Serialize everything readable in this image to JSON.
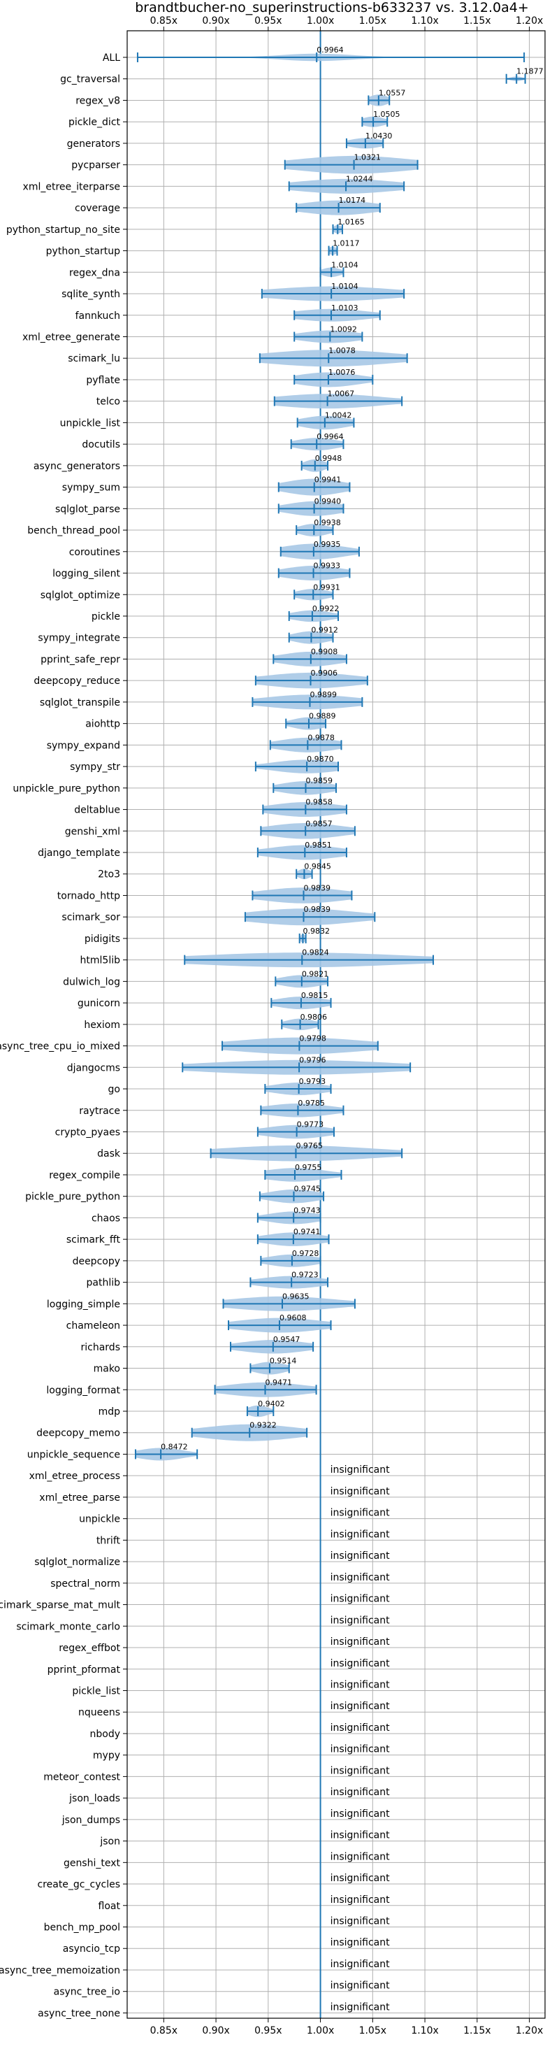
{
  "chart_data": {
    "type": "violin",
    "title": "brandtbucher-no_superinstructions-b633237 vs. 3.12.0a4+",
    "xlabel": "",
    "ylabel": "",
    "xlim": [
      0.815,
      1.215
    ],
    "grid": true,
    "reference_line": 1.0,
    "x_ticks": [
      0.85,
      0.9,
      0.95,
      1.0,
      1.05,
      1.1,
      1.15,
      1.2
    ],
    "x_tick_labels": [
      "0.85x",
      "0.90x",
      "0.95x",
      "1.00x",
      "1.05x",
      "1.10x",
      "1.15x",
      "1.20x"
    ],
    "insignificant_label": "insignificant",
    "colors": {
      "violin": "#a7c8e6",
      "line": "#1f77b4",
      "grid": "#b0b0b0",
      "axis": "#000000"
    },
    "benchmarks": [
      {
        "name": "ALL",
        "value": 0.9964,
        "label": "0.9964",
        "min": 0.825,
        "max": 1.195,
        "spread": 0.035,
        "width": 0.35
      },
      {
        "name": "gc_traversal",
        "value": 1.1877,
        "label": "1.1877",
        "min": 1.178,
        "max": 1.196,
        "spread": 0.006,
        "width": 0.22
      },
      {
        "name": "regex_v8",
        "value": 1.0557,
        "label": "1.0557",
        "min": 1.046,
        "max": 1.066,
        "spread": 0.009,
        "width": 0.55
      },
      {
        "name": "pickle_dict",
        "value": 1.0505,
        "label": "1.0505",
        "min": 1.04,
        "max": 1.064,
        "spread": 0.011,
        "width": 0.5
      },
      {
        "name": "generators",
        "value": 1.043,
        "label": "1.0430",
        "min": 1.025,
        "max": 1.06,
        "spread": 0.016,
        "width": 0.5
      },
      {
        "name": "pycparser",
        "value": 1.0321,
        "label": "1.0321",
        "min": 0.966,
        "max": 1.093,
        "spread": 0.055,
        "width": 0.85
      },
      {
        "name": "xml_etree_iterparse",
        "value": 1.0244,
        "label": "1.0244",
        "min": 0.97,
        "max": 1.08,
        "spread": 0.048,
        "width": 0.7
      },
      {
        "name": "coverage",
        "value": 1.0174,
        "label": "1.0174",
        "min": 0.977,
        "max": 1.057,
        "spread": 0.035,
        "width": 0.7
      },
      {
        "name": "python_startup_no_site",
        "value": 1.0165,
        "label": "1.0165",
        "min": 1.012,
        "max": 1.021,
        "spread": 0.004,
        "width": 0.4
      },
      {
        "name": "python_startup",
        "value": 1.0117,
        "label": "1.0117",
        "min": 1.008,
        "max": 1.016,
        "spread": 0.004,
        "width": 0.4
      },
      {
        "name": "regex_dna",
        "value": 1.0104,
        "label": "1.0104",
        "min": 1.0,
        "max": 1.022,
        "spread": 0.009,
        "width": 0.45
      },
      {
        "name": "sqlite_synth",
        "value": 1.0104,
        "label": "1.0104",
        "min": 0.944,
        "max": 1.08,
        "spread": 0.06,
        "width": 0.7
      },
      {
        "name": "fannkuch",
        "value": 1.0103,
        "label": "1.0103",
        "min": 0.975,
        "max": 1.057,
        "spread": 0.035,
        "width": 0.6
      },
      {
        "name": "xml_etree_generate",
        "value": 1.0092,
        "label": "1.0092",
        "min": 0.975,
        "max": 1.04,
        "spread": 0.028,
        "width": 0.6
      },
      {
        "name": "scimark_lu",
        "value": 1.0078,
        "label": "1.0078",
        "min": 0.942,
        "max": 1.083,
        "spread": 0.06,
        "width": 0.8
      },
      {
        "name": "pyflate",
        "value": 1.0076,
        "label": "1.0076",
        "min": 0.975,
        "max": 1.05,
        "spread": 0.03,
        "width": 0.7
      },
      {
        "name": "telco",
        "value": 1.0067,
        "label": "1.0067",
        "min": 0.956,
        "max": 1.078,
        "spread": 0.05,
        "width": 0.7
      },
      {
        "name": "unpickle_list",
        "value": 1.0042,
        "label": "1.0042",
        "min": 0.978,
        "max": 1.032,
        "spread": 0.022,
        "width": 0.65
      },
      {
        "name": "docutils",
        "value": 0.9964,
        "label": "0.9964",
        "min": 0.972,
        "max": 1.022,
        "spread": 0.02,
        "width": 0.6
      },
      {
        "name": "async_generators",
        "value": 0.9948,
        "label": "0.9948",
        "min": 0.982,
        "max": 1.007,
        "spread": 0.01,
        "width": 0.6
      },
      {
        "name": "sympy_sum",
        "value": 0.9941,
        "label": "0.9941",
        "min": 0.96,
        "max": 1.028,
        "spread": 0.028,
        "width": 0.8
      },
      {
        "name": "sqlglot_parse",
        "value": 0.994,
        "label": "0.9940",
        "min": 0.96,
        "max": 1.022,
        "spread": 0.026,
        "width": 0.7
      },
      {
        "name": "bench_thread_pool",
        "value": 0.9938,
        "label": "0.9938",
        "min": 0.977,
        "max": 1.012,
        "spread": 0.014,
        "width": 0.6
      },
      {
        "name": "coroutines",
        "value": 0.9935,
        "label": "0.9935",
        "min": 0.962,
        "max": 1.037,
        "spread": 0.03,
        "width": 0.75
      },
      {
        "name": "logging_silent",
        "value": 0.9933,
        "label": "0.9933",
        "min": 0.96,
        "max": 1.028,
        "spread": 0.028,
        "width": 0.7
      },
      {
        "name": "sqlglot_optimize",
        "value": 0.9931,
        "label": "0.9931",
        "min": 0.975,
        "max": 1.012,
        "spread": 0.015,
        "width": 0.55
      },
      {
        "name": "pickle",
        "value": 0.9922,
        "label": "0.9922",
        "min": 0.97,
        "max": 1.017,
        "spread": 0.019,
        "width": 0.55
      },
      {
        "name": "sympy_integrate",
        "value": 0.9912,
        "label": "0.9912",
        "min": 0.97,
        "max": 1.012,
        "spread": 0.017,
        "width": 0.6
      },
      {
        "name": "pprint_safe_repr",
        "value": 0.9908,
        "label": "0.9908",
        "min": 0.955,
        "max": 1.025,
        "spread": 0.028,
        "width": 0.7
      },
      {
        "name": "deepcopy_reduce",
        "value": 0.9906,
        "label": "0.9906",
        "min": 0.938,
        "max": 1.045,
        "spread": 0.044,
        "width": 0.75
      },
      {
        "name": "sqlglot_transpile",
        "value": 0.9899,
        "label": "0.9899",
        "min": 0.935,
        "max": 1.04,
        "spread": 0.044,
        "width": 0.7
      },
      {
        "name": "aiohttp",
        "value": 0.9889,
        "label": "0.9889",
        "min": 0.967,
        "max": 1.005,
        "spread": 0.016,
        "width": 0.6
      },
      {
        "name": "sympy_expand",
        "value": 0.9878,
        "label": "0.9878",
        "min": 0.952,
        "max": 1.02,
        "spread": 0.028,
        "width": 0.7
      },
      {
        "name": "sympy_str",
        "value": 0.987,
        "label": "0.9870",
        "min": 0.938,
        "max": 1.017,
        "spread": 0.032,
        "width": 0.65
      },
      {
        "name": "unpickle_pure_python",
        "value": 0.9859,
        "label": "0.9859",
        "min": 0.955,
        "max": 1.015,
        "spread": 0.024,
        "width": 0.65
      },
      {
        "name": "deltablue",
        "value": 0.9858,
        "label": "0.9858",
        "min": 0.945,
        "max": 1.025,
        "spread": 0.033,
        "width": 0.7
      },
      {
        "name": "genshi_xml",
        "value": 0.9857,
        "label": "0.9857",
        "min": 0.943,
        "max": 1.033,
        "spread": 0.036,
        "width": 0.75
      },
      {
        "name": "django_template",
        "value": 0.9851,
        "label": "0.9851",
        "min": 0.94,
        "max": 1.025,
        "spread": 0.034,
        "width": 0.7
      },
      {
        "name": "2to3",
        "value": 0.9845,
        "label": "0.9845",
        "min": 0.977,
        "max": 0.992,
        "spread": 0.006,
        "width": 0.5
      },
      {
        "name": "tornado_http",
        "value": 0.9839,
        "label": "0.9839",
        "min": 0.935,
        "max": 1.03,
        "spread": 0.04,
        "width": 0.75
      },
      {
        "name": "scimark_sor",
        "value": 0.9839,
        "label": "0.9839",
        "min": 0.928,
        "max": 1.052,
        "spread": 0.05,
        "width": 0.8
      },
      {
        "name": "pidigits",
        "value": 0.9832,
        "label": "0.9832",
        "min": 0.98,
        "max": 0.986,
        "spread": 0.0025,
        "width": 0.4
      },
      {
        "name": "html5lib",
        "value": 0.9824,
        "label": "0.9824",
        "min": 0.87,
        "max": 1.108,
        "spread": 0.1,
        "width": 0.7
      },
      {
        "name": "dulwich_log",
        "value": 0.9821,
        "label": "0.9821",
        "min": 0.957,
        "max": 1.007,
        "spread": 0.02,
        "width": 0.6
      },
      {
        "name": "gunicorn",
        "value": 0.9815,
        "label": "0.9815",
        "min": 0.953,
        "max": 1.01,
        "spread": 0.023,
        "width": 0.6
      },
      {
        "name": "hexiom",
        "value": 0.9806,
        "label": "0.9806",
        "min": 0.963,
        "max": 0.998,
        "spread": 0.014,
        "width": 0.55
      },
      {
        "name": "async_tree_cpu_io_mixed",
        "value": 0.9798,
        "label": "0.9798",
        "min": 0.906,
        "max": 1.055,
        "spread": 0.062,
        "width": 0.8
      },
      {
        "name": "djangocms",
        "value": 0.9796,
        "label": "0.9796",
        "min": 0.868,
        "max": 1.086,
        "spread": 0.09,
        "width": 0.7
      },
      {
        "name": "go",
        "value": 0.9793,
        "label": "0.9793",
        "min": 0.947,
        "max": 1.01,
        "spread": 0.025,
        "width": 0.6
      },
      {
        "name": "raytrace",
        "value": 0.9785,
        "label": "0.9785",
        "min": 0.943,
        "max": 1.022,
        "spread": 0.032,
        "width": 0.65
      },
      {
        "name": "crypto_pyaes",
        "value": 0.9773,
        "label": "0.9773",
        "min": 0.94,
        "max": 1.013,
        "spread": 0.03,
        "width": 0.65
      },
      {
        "name": "dask",
        "value": 0.9765,
        "label": "0.9765",
        "min": 0.895,
        "max": 1.078,
        "spread": 0.075,
        "width": 0.75
      },
      {
        "name": "regex_compile",
        "value": 0.9755,
        "label": "0.9755",
        "min": 0.947,
        "max": 1.02,
        "spread": 0.03,
        "width": 0.65
      },
      {
        "name": "pickle_pure_python",
        "value": 0.9745,
        "label": "0.9745",
        "min": 0.942,
        "max": 1.003,
        "spread": 0.024,
        "width": 0.65
      },
      {
        "name": "chaos",
        "value": 0.9743,
        "label": "0.9743",
        "min": 0.94,
        "max": 1.0,
        "spread": 0.024,
        "width": 0.6
      },
      {
        "name": "scimark_fft",
        "value": 0.9741,
        "label": "0.9741",
        "min": 0.94,
        "max": 1.008,
        "spread": 0.027,
        "width": 0.65
      },
      {
        "name": "deepcopy",
        "value": 0.9728,
        "label": "0.9728",
        "min": 0.943,
        "max": 1.0,
        "spread": 0.023,
        "width": 0.6
      },
      {
        "name": "pathlib",
        "value": 0.9723,
        "label": "0.9723",
        "min": 0.933,
        "max": 1.007,
        "spread": 0.03,
        "width": 0.6
      },
      {
        "name": "logging_simple",
        "value": 0.9635,
        "label": "0.9635",
        "min": 0.907,
        "max": 1.033,
        "spread": 0.05,
        "width": 0.7
      },
      {
        "name": "chameleon",
        "value": 0.9608,
        "label": "0.9608",
        "min": 0.912,
        "max": 1.01,
        "spread": 0.04,
        "width": 0.7
      },
      {
        "name": "richards",
        "value": 0.9547,
        "label": "0.9547",
        "min": 0.914,
        "max": 0.993,
        "spread": 0.032,
        "width": 0.65
      },
      {
        "name": "mako",
        "value": 0.9514,
        "label": "0.9514",
        "min": 0.933,
        "max": 0.97,
        "spread": 0.015,
        "width": 0.6
      },
      {
        "name": "logging_format",
        "value": 0.9471,
        "label": "0.9471",
        "min": 0.899,
        "max": 0.996,
        "spread": 0.038,
        "width": 0.7
      },
      {
        "name": "mdp",
        "value": 0.9402,
        "label": "0.9402",
        "min": 0.93,
        "max": 0.955,
        "spread": 0.01,
        "width": 0.55
      },
      {
        "name": "deepcopy_memo",
        "value": 0.9322,
        "label": "0.9322",
        "min": 0.877,
        "max": 0.987,
        "spread": 0.045,
        "width": 0.8
      },
      {
        "name": "unpickle_sequence",
        "value": 0.8472,
        "label": "0.8472",
        "min": 0.823,
        "max": 0.882,
        "spread": 0.022,
        "width": 0.6
      },
      {
        "name": "xml_etree_process",
        "insignificant": true
      },
      {
        "name": "xml_etree_parse",
        "insignificant": true
      },
      {
        "name": "unpickle",
        "insignificant": true
      },
      {
        "name": "thrift",
        "insignificant": true
      },
      {
        "name": "sqlglot_normalize",
        "insignificant": true
      },
      {
        "name": "spectral_norm",
        "insignificant": true
      },
      {
        "name": "scimark_sparse_mat_mult",
        "insignificant": true
      },
      {
        "name": "scimark_monte_carlo",
        "insignificant": true
      },
      {
        "name": "regex_effbot",
        "insignificant": true
      },
      {
        "name": "pprint_pformat",
        "insignificant": true
      },
      {
        "name": "pickle_list",
        "insignificant": true
      },
      {
        "name": "nqueens",
        "insignificant": true
      },
      {
        "name": "nbody",
        "insignificant": true
      },
      {
        "name": "mypy",
        "insignificant": true
      },
      {
        "name": "meteor_contest",
        "insignificant": true
      },
      {
        "name": "json_loads",
        "insignificant": true
      },
      {
        "name": "json_dumps",
        "insignificant": true
      },
      {
        "name": "json",
        "insignificant": true
      },
      {
        "name": "genshi_text",
        "insignificant": true
      },
      {
        "name": "create_gc_cycles",
        "insignificant": true
      },
      {
        "name": "float",
        "insignificant": true
      },
      {
        "name": "bench_mp_pool",
        "insignificant": true
      },
      {
        "name": "asyncio_tcp",
        "insignificant": true
      },
      {
        "name": "async_tree_memoization",
        "insignificant": true
      },
      {
        "name": "async_tree_io",
        "insignificant": true
      },
      {
        "name": "async_tree_none",
        "insignificant": true
      }
    ]
  }
}
